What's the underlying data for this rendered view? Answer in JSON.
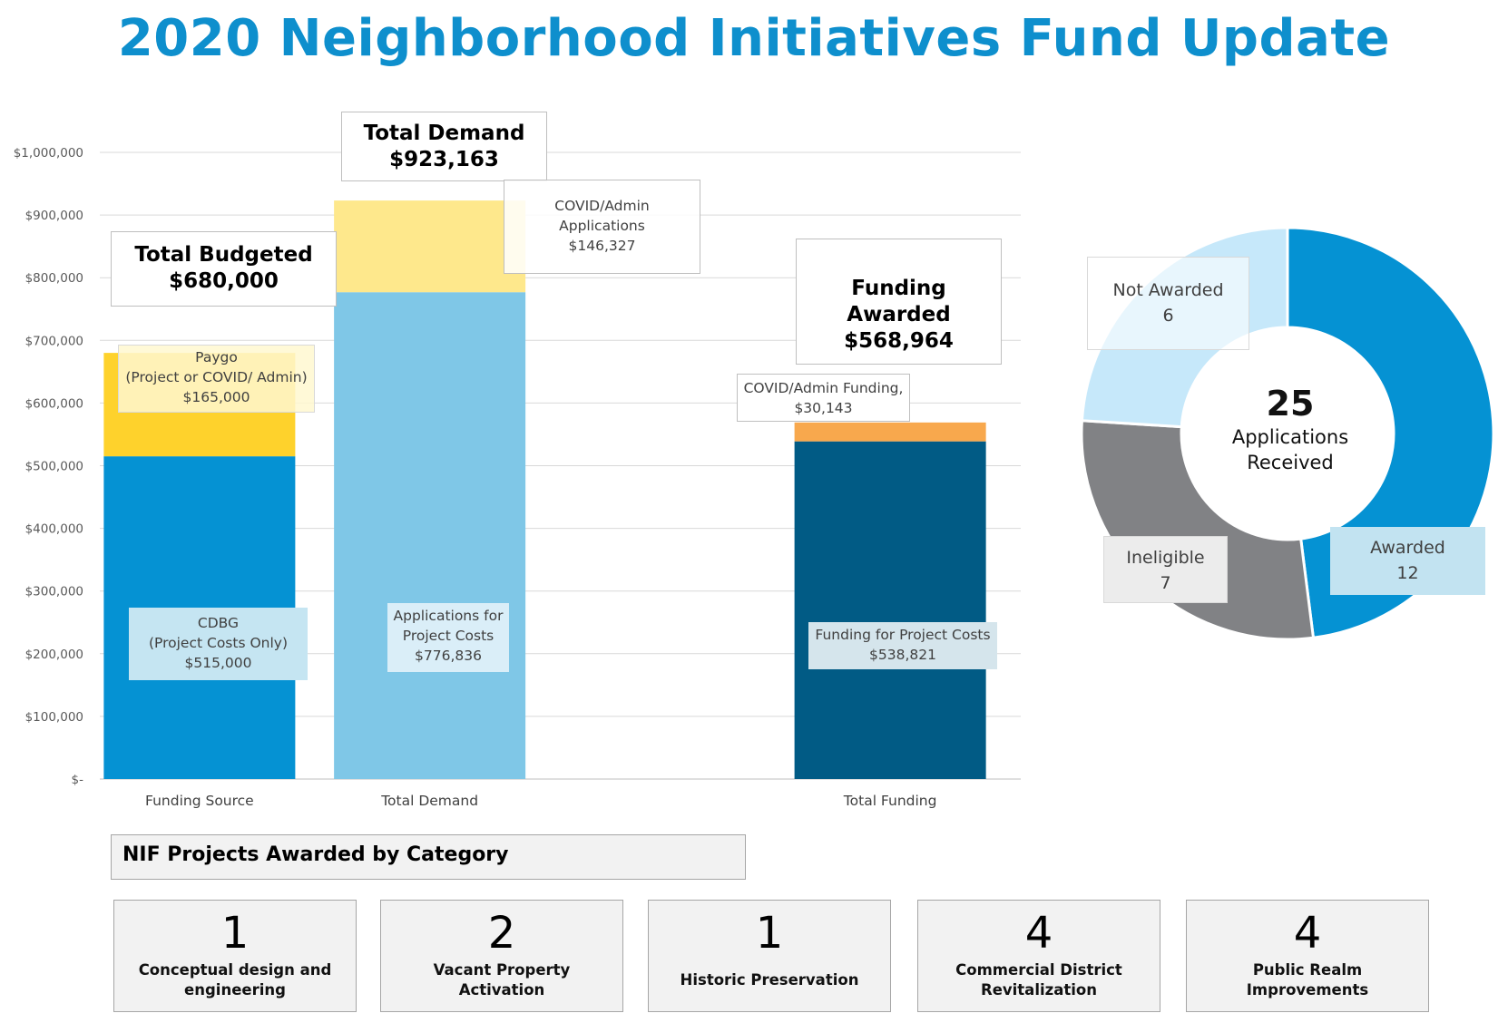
{
  "title": "2020 Neighborhood Initiatives Fund Update",
  "colors": {
    "title": "#0e8fcd",
    "cdbg": "#0592d3",
    "paygo": "#fed22c",
    "applications": "#7fc7e7",
    "covid_applications": "#fee88c",
    "funding_projects": "#015b85",
    "covid_funding": "#f8a84d",
    "awarded": "#0592d3",
    "ineligible": "#818285",
    "not_awarded": "#c6e8fa"
  },
  "chart_data": [
    {
      "type": "bar",
      "stacked": true,
      "categories": [
        "Funding Source",
        "Total Demand",
        "",
        "Total Funding"
      ],
      "ylim": [
        0,
        1000000
      ],
      "yticks": [
        "$-",
        "$100,000",
        "$200,000",
        "$300,000",
        "$400,000",
        "$500,000",
        "$600,000",
        "$700,000",
        "$800,000",
        "$900,000",
        "$1,000,000"
      ],
      "grid": true,
      "series": [
        {
          "category": "Funding Source",
          "label_lines": [
            "CDBG",
            "(Project Costs Only)",
            "$515,000"
          ],
          "value": 515000,
          "color_key": "cdbg",
          "stack_index": 0
        },
        {
          "category": "Funding Source",
          "label_lines": [
            "Paygo",
            "(Project or COVID/ Admin)",
            "$165,000"
          ],
          "value": 165000,
          "color_key": "paygo",
          "stack_index": 1
        },
        {
          "category": "Total Demand",
          "label_lines": [
            "Applications for",
            "Project Costs",
            "$776,836"
          ],
          "value": 776836,
          "color_key": "applications",
          "stack_index": 0
        },
        {
          "category": "Total Demand",
          "label_lines": [
            "COVID/Admin",
            "Applications",
            "$146,327"
          ],
          "value": 146327,
          "color_key": "covid_applications",
          "stack_index": 1
        },
        {
          "category": "Total Funding",
          "label_lines": [
            "Funding for Project Costs",
            "$538,821"
          ],
          "value": 538821,
          "color_key": "funding_projects",
          "stack_index": 0
        },
        {
          "category": "Total Funding",
          "label_lines": [
            "COVID/Admin Funding,",
            "$30,143"
          ],
          "value": 30143,
          "color_key": "covid_funding",
          "stack_index": 1
        }
      ],
      "totals": [
        {
          "heading": "Total Budgeted",
          "amount": "$680,000"
        },
        {
          "heading": "Total Demand",
          "amount": "$923,163"
        },
        {
          "heading": "Funding Awarded",
          "amount": "$568,964"
        }
      ]
    },
    {
      "type": "pie",
      "donut": true,
      "center_value": "25",
      "center_label_lines": [
        "Applications",
        "Received"
      ],
      "slices": [
        {
          "label": "Awarded",
          "value": 12,
          "color_key": "awarded"
        },
        {
          "label": "Ineligible",
          "value": 7,
          "color_key": "ineligible"
        },
        {
          "label": "Not Awarded",
          "value": 6,
          "color_key": "not_awarded"
        }
      ]
    }
  ],
  "categories_section": {
    "header": "NIF Projects Awarded by Category",
    "items": [
      {
        "count": "1",
        "name": "Conceptual design and engineering"
      },
      {
        "count": "2",
        "name": "Vacant Property Activation"
      },
      {
        "count": "1",
        "name": "Historic Preservation"
      },
      {
        "count": "4",
        "name": "Commercial District Revitalization"
      },
      {
        "count": "4",
        "name": "Public Realm Improvements"
      }
    ]
  }
}
